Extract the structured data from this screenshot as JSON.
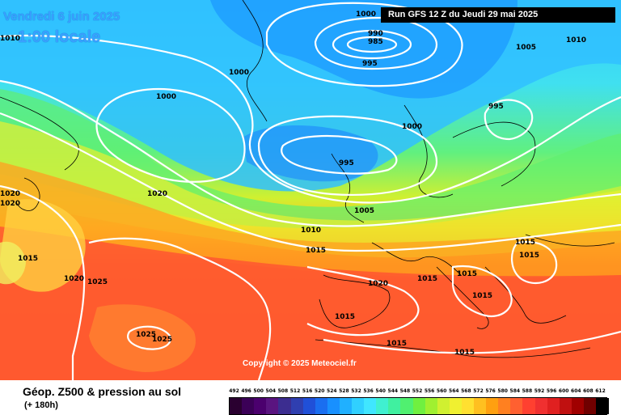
{
  "header": {
    "date_label": "Vendredi 6 juin 2025",
    "time_label": "1:00 locale",
    "run_label": "Run GFS 12 Z du Jeudi 29 mai 2025",
    "copyright": "Copyright © 2025 Meteociel.fr"
  },
  "footer": {
    "title": "Géop. Z500 & pression au sol",
    "subtitle": "(+ 180h)"
  },
  "legend": {
    "values": [
      "492",
      "496",
      "500",
      "504",
      "508",
      "512",
      "516",
      "520",
      "524",
      "528",
      "532",
      "536",
      "540",
      "544",
      "548",
      "552",
      "556",
      "560",
      "564",
      "568",
      "572",
      "576",
      "580",
      "584",
      "588",
      "592",
      "596",
      "600",
      "604",
      "608",
      "612"
    ],
    "colors": [
      "#2a0030",
      "#3b0057",
      "#4b006e",
      "#5a1480",
      "#3c2d90",
      "#2f3fb0",
      "#2050d8",
      "#1a6ef0",
      "#1890ff",
      "#20b0ff",
      "#30d0ff",
      "#40e6ff",
      "#40f0d0",
      "#40f0a0",
      "#50f070",
      "#70f040",
      "#a0f030",
      "#d0f030",
      "#f0f030",
      "#ffe030",
      "#ffc020",
      "#ffa010",
      "#ff8020",
      "#ff6030",
      "#ff4030",
      "#f03030",
      "#e02020",
      "#c01010",
      "#a00000",
      "#700000",
      "#000000"
    ]
  },
  "isobars": {
    "labels": [
      "1000",
      "990",
      "985",
      "995",
      "1010",
      "1005",
      "1010",
      "1000",
      "1000",
      "995",
      "1000",
      "995",
      "1005",
      "1020",
      "1020",
      "1020",
      "1010",
      "1015",
      "1015",
      "1025",
      "1020",
      "1015",
      "1015",
      "1015",
      "1015",
      "1025",
      "1025",
      "1015",
      "1015",
      "1015",
      "1015"
    ]
  },
  "colors": {
    "isobar": "#ffffff",
    "coastline": "#000000",
    "header_text": "#3aa0ff",
    "banner_bg": "#000000"
  }
}
